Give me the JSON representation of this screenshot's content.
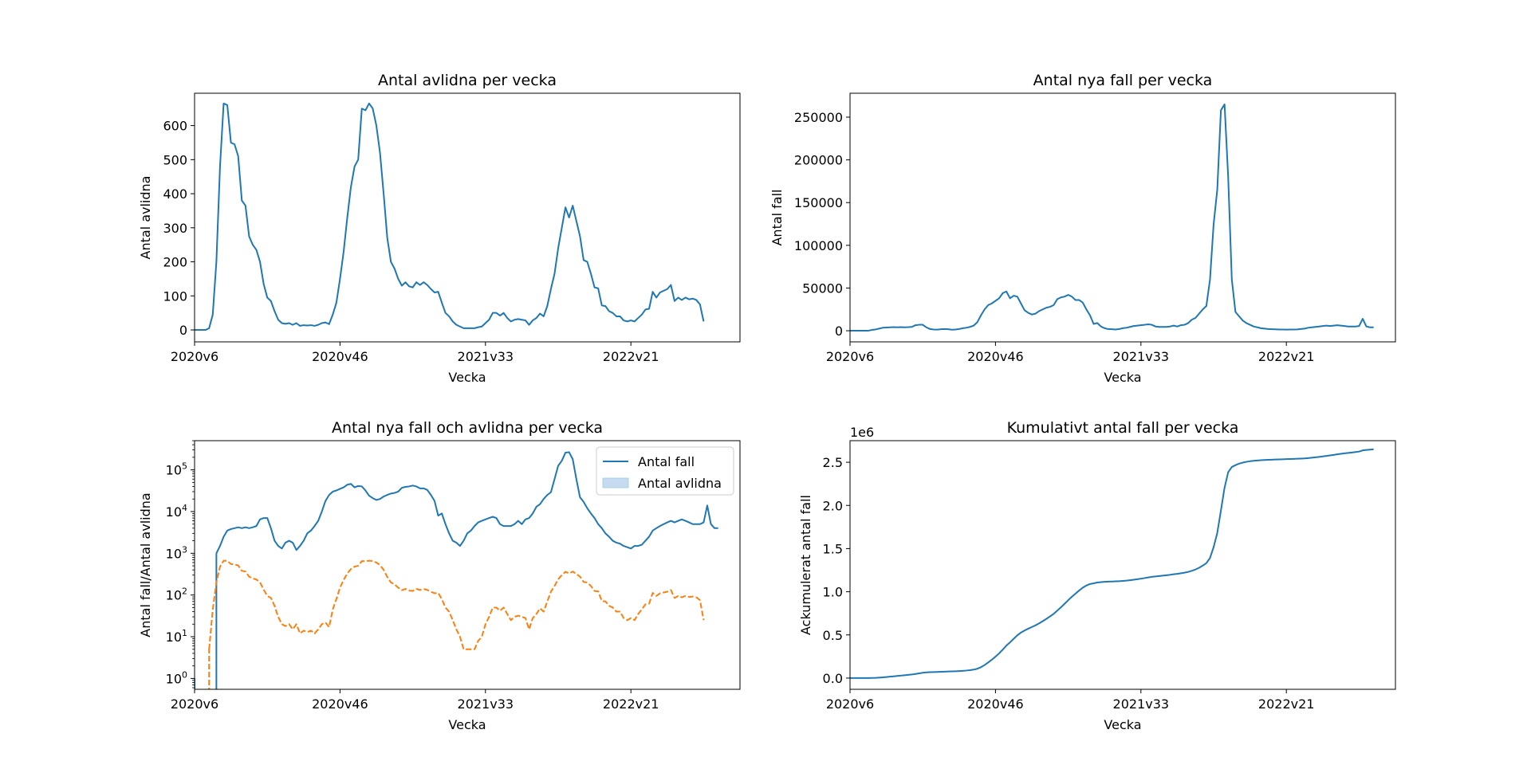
{
  "colors": {
    "series1": "#1f77b4",
    "series2": "#ff7f0e",
    "legend_fill": "#c6dbef"
  },
  "chart_data": [
    {
      "type": "line",
      "title": "Antal avlidna per vecka",
      "xlabel": "Vecka",
      "ylabel": "Antal avlidna",
      "xlim": [
        0,
        150
      ],
      "ylim": [
        -35,
        695
      ],
      "xticks": [
        {
          "x": 0,
          "label": "2020v6"
        },
        {
          "x": 40,
          "label": "2020v46"
        },
        {
          "x": 80,
          "label": "2021v33"
        },
        {
          "x": 120,
          "label": "2022v21"
        }
      ],
      "yticks": [
        {
          "y": 0,
          "label": "0"
        },
        {
          "y": 100,
          "label": "100"
        },
        {
          "y": 200,
          "label": "200"
        },
        {
          "y": 300,
          "label": "300"
        },
        {
          "y": 400,
          "label": "400"
        },
        {
          "y": 500,
          "label": "500"
        },
        {
          "y": 600,
          "label": "600"
        }
      ],
      "series": [
        {
          "values": [
            0,
            0,
            0,
            0,
            5,
            45,
            200,
            480,
            665,
            660,
            550,
            545,
            510,
            380,
            365,
            275,
            250,
            235,
            200,
            135,
            95,
            85,
            55,
            30,
            20,
            18,
            20,
            15,
            20,
            12,
            14,
            13,
            14,
            12,
            15,
            20,
            22,
            17,
            45,
            80,
            150,
            230,
            330,
            420,
            480,
            500,
            650,
            645,
            665,
            650,
            600,
            520,
            400,
            270,
            200,
            180,
            150,
            130,
            140,
            128,
            125,
            140,
            132,
            140,
            132,
            120,
            110,
            112,
            80,
            50,
            40,
            25,
            15,
            10,
            5,
            5,
            5,
            5,
            8,
            10,
            20,
            30,
            50,
            50,
            42,
            50,
            35,
            25,
            30,
            32,
            30,
            28,
            15,
            28,
            35,
            48,
            40,
            70,
            120,
            165,
            240,
            300,
            360,
            330,
            365,
            320,
            275,
            205,
            200,
            165,
            125,
            122,
            72,
            70,
            55,
            50,
            40,
            40,
            28,
            25,
            28,
            25,
            35,
            45,
            60,
            62,
            112,
            95,
            110,
            115,
            120,
            132,
            85,
            95,
            88,
            95,
            90,
            92,
            88,
            75,
            25
          ]
        }
      ]
    },
    {
      "type": "line",
      "title": "Antal nya fall per vecka",
      "xlabel": "Vecka",
      "ylabel": "Antal fall",
      "xlim": [
        0,
        150
      ],
      "ylim": [
        -13000,
        278000
      ],
      "xticks": [
        {
          "x": 0,
          "label": "2020v6"
        },
        {
          "x": 40,
          "label": "2020v46"
        },
        {
          "x": 80,
          "label": "2021v33"
        },
        {
          "x": 120,
          "label": "2022v21"
        }
      ],
      "yticks": [
        {
          "y": 0,
          "label": "0"
        },
        {
          "y": 50000,
          "label": "50000"
        },
        {
          "y": 100000,
          "label": "100000"
        },
        {
          "y": 150000,
          "label": "150000"
        },
        {
          "y": 200000,
          "label": "200000"
        },
        {
          "y": 250000,
          "label": "250000"
        }
      ],
      "series": [
        {
          "values": [
            1,
            0,
            0,
            0,
            0,
            0,
            1000,
            1500,
            2500,
            3500,
            3800,
            4000,
            4200,
            4000,
            4200,
            4000,
            4200,
            4500,
            6500,
            7000,
            7000,
            4000,
            2000,
            1500,
            1300,
            1800,
            2000,
            1800,
            1200,
            1500,
            2000,
            3000,
            3500,
            4500,
            6000,
            10000,
            18000,
            25000,
            30000,
            32000,
            35000,
            38000,
            44000,
            46000,
            38000,
            41000,
            40000,
            32000,
            24000,
            21000,
            19000,
            20000,
            23000,
            25000,
            27000,
            28000,
            30000,
            37000,
            39000,
            40000,
            42000,
            40000,
            36000,
            36000,
            33000,
            25000,
            18000,
            8000,
            9000,
            5000,
            3000,
            2000,
            1800,
            1500,
            2000,
            3000,
            3500,
            4500,
            5500,
            6000,
            6500,
            7000,
            7500,
            7000,
            5000,
            4500,
            4500,
            4500,
            5000,
            6000,
            5000,
            6500,
            7000,
            9000,
            13000,
            15000,
            20000,
            25000,
            29000,
            60000,
            125000,
            165000,
            258000,
            265000,
            180000,
            60000,
            22000,
            17000,
            12000,
            9000,
            7000,
            5000,
            4000,
            3000,
            2500,
            2000,
            1800,
            1700,
            1500,
            1400,
            1300,
            1500,
            1500,
            1600,
            2000,
            2500,
            3500,
            4000,
            4500,
            5000,
            5500,
            6000,
            5500,
            6000,
            6500,
            6000,
            5500,
            5000,
            5000,
            5000,
            5500,
            14000,
            5000,
            4000,
            4000
          ]
        }
      ]
    },
    {
      "type": "line",
      "title": "Antal nya fall och avlidna per vecka",
      "xlabel": "Vecka",
      "ylabel": "Antal fall/Antal avlidna",
      "yscale": "log",
      "xlim": [
        0,
        150
      ],
      "ylim": [
        0.55,
        500000
      ],
      "xticks": [
        {
          "x": 0,
          "label": "2020v6"
        },
        {
          "x": 40,
          "label": "2020v46"
        },
        {
          "x": 80,
          "label": "2021v33"
        },
        {
          "x": 120,
          "label": "2022v21"
        }
      ],
      "yticks": [
        {
          "y": 1,
          "base": "10",
          "exp": "0"
        },
        {
          "y": 10,
          "base": "10",
          "exp": "1"
        },
        {
          "y": 100,
          "base": "10",
          "exp": "2"
        },
        {
          "y": 1000,
          "base": "10",
          "exp": "3"
        },
        {
          "y": 10000,
          "base": "10",
          "exp": "4"
        },
        {
          "y": 100000,
          "base": "10",
          "exp": "5"
        }
      ],
      "legend_position": "top-right",
      "legend": [
        {
          "label": "Antal fall",
          "kind": "line"
        },
        {
          "label": "Antal avlidna",
          "kind": "patch"
        }
      ],
      "series": [
        {
          "name": "Antal fall",
          "style": "solid",
          "ref": "cases"
        },
        {
          "name": "Antal avlidna",
          "style": "dashed",
          "ref": "deaths"
        }
      ]
    },
    {
      "type": "line",
      "title": "Kumulativt antal fall per vecka",
      "xlabel": "Vecka",
      "ylabel": "Ackumulerat antal fall",
      "offset_label": "1e6",
      "xlim": [
        0,
        150
      ],
      "ylim": [
        -0.13,
        2.75
      ],
      "xticks": [
        {
          "x": 0,
          "label": "2020v6"
        },
        {
          "x": 40,
          "label": "2020v46"
        },
        {
          "x": 80,
          "label": "2021v33"
        },
        {
          "x": 120,
          "label": "2022v21"
        }
      ],
      "yticks": [
        {
          "y": 0,
          "label": "0.0"
        },
        {
          "y": 0.5,
          "label": "0.5"
        },
        {
          "y": 1.0,
          "label": "1.0"
        },
        {
          "y": 1.5,
          "label": "1.5"
        },
        {
          "y": 2.0,
          "label": "2.0"
        },
        {
          "y": 2.5,
          "label": "2.5"
        }
      ],
      "series": [
        {
          "ref": "cumulative_of_cases"
        }
      ]
    }
  ]
}
